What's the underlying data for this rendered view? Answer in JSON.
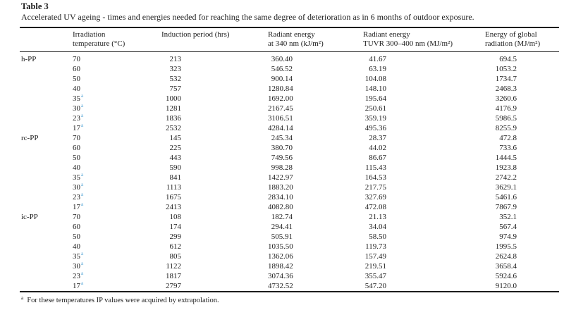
{
  "page": {
    "background": "#ffffff",
    "text_color": "#1d1d1d",
    "rule_color": "#1c1c1c",
    "marker_color": "#58a8d8"
  },
  "table": {
    "label": "Table 3",
    "caption": "Accelerated UV ageing - times and energies needed for reaching the same degree of deterioration as in 6 months of outdoor exposure.",
    "columns": [
      {
        "line1": "",
        "line2": ""
      },
      {
        "line1": "Irradiation",
        "line2": "temperature (°C)"
      },
      {
        "line1": "Induction period (hrs)",
        "line2": ""
      },
      {
        "line1": "Radiant energy",
        "line2": "at 340 nm (kJ/m²)"
      },
      {
        "line1": "Radiant energy",
        "line2": "TUVR 300–400 nm (MJ/m²)"
      },
      {
        "line1": "Energy of global",
        "line2": "radiation (MJ/m²)"
      }
    ],
    "groups": [
      {
        "material": "h-PP",
        "rows": [
          {
            "temp": "70",
            "marker": "",
            "induction": "213",
            "e340": "360.40",
            "tuvr": "41.67",
            "global": "694.5"
          },
          {
            "temp": "60",
            "marker": "",
            "induction": "323",
            "e340": "546.52",
            "tuvr": "63.19",
            "global": "1053.2"
          },
          {
            "temp": "50",
            "marker": "",
            "induction": "532",
            "e340": "900.14",
            "tuvr": "104.08",
            "global": "1734.7"
          },
          {
            "temp": "40",
            "marker": "",
            "induction": "757",
            "e340": "1280.84",
            "tuvr": "148.10",
            "global": "2468.3"
          },
          {
            "temp": "35",
            "marker": "a",
            "induction": "1000",
            "e340": "1692.00",
            "tuvr": "195.64",
            "global": "3260.6"
          },
          {
            "temp": "30",
            "marker": "a",
            "induction": "1281",
            "e340": "2167.45",
            "tuvr": "250.61",
            "global": "4176.9"
          },
          {
            "temp": "23",
            "marker": "a",
            "induction": "1836",
            "e340": "3106.51",
            "tuvr": "359.19",
            "global": "5986.5"
          },
          {
            "temp": "17",
            "marker": "a",
            "induction": "2532",
            "e340": "4284.14",
            "tuvr": "495.36",
            "global": "8255.9"
          }
        ]
      },
      {
        "material": "rc-PP",
        "rows": [
          {
            "temp": "70",
            "marker": "",
            "induction": "145",
            "e340": "245.34",
            "tuvr": "28.37",
            "global": "472.8"
          },
          {
            "temp": "60",
            "marker": "",
            "induction": "225",
            "e340": "380.70",
            "tuvr": "44.02",
            "global": "733.6"
          },
          {
            "temp": "50",
            "marker": "",
            "induction": "443",
            "e340": "749.56",
            "tuvr": "86.67",
            "global": "1444.5"
          },
          {
            "temp": "40",
            "marker": "",
            "induction": "590",
            "e340": "998.28",
            "tuvr": "115.43",
            "global": "1923.8"
          },
          {
            "temp": "35",
            "marker": "a",
            "induction": "841",
            "e340": "1422.97",
            "tuvr": "164.53",
            "global": "2742.2"
          },
          {
            "temp": "30",
            "marker": "a",
            "induction": "1113",
            "e340": "1883.20",
            "tuvr": "217.75",
            "global": "3629.1"
          },
          {
            "temp": "23",
            "marker": "a",
            "induction": "1675",
            "e340": "2834.10",
            "tuvr": "327.69",
            "global": "5461.6"
          },
          {
            "temp": "17",
            "marker": "a",
            "induction": "2413",
            "e340": "4082.80",
            "tuvr": "472.08",
            "global": "7867.9"
          }
        ]
      },
      {
        "material": "ic-PP",
        "rows": [
          {
            "temp": "70",
            "marker": "",
            "induction": "108",
            "e340": "182.74",
            "tuvr": "21.13",
            "global": "352.1"
          },
          {
            "temp": "60",
            "marker": "",
            "induction": "174",
            "e340": "294.41",
            "tuvr": "34.04",
            "global": "567.4"
          },
          {
            "temp": "50",
            "marker": "",
            "induction": "299",
            "e340": "505.91",
            "tuvr": "58.50",
            "global": "974.9"
          },
          {
            "temp": "40",
            "marker": "",
            "induction": "612",
            "e340": "1035.50",
            "tuvr": "119.73",
            "global": "1995.5"
          },
          {
            "temp": "35",
            "marker": "a",
            "induction": "805",
            "e340": "1362.06",
            "tuvr": "157.49",
            "global": "2624.8"
          },
          {
            "temp": "30",
            "marker": "a",
            "induction": "1122",
            "e340": "1898.42",
            "tuvr": "219.51",
            "global": "3658.4"
          },
          {
            "temp": "23",
            "marker": "a",
            "induction": "1817",
            "e340": "3074.36",
            "tuvr": "355.47",
            "global": "5924.6"
          },
          {
            "temp": "17",
            "marker": "a",
            "induction": "2797",
            "e340": "4732.52",
            "tuvr": "547.20",
            "global": "9120.0"
          }
        ]
      }
    ],
    "footnote": {
      "marker": "a",
      "text": "For these temperatures IP values were acquired by extrapolation."
    }
  }
}
